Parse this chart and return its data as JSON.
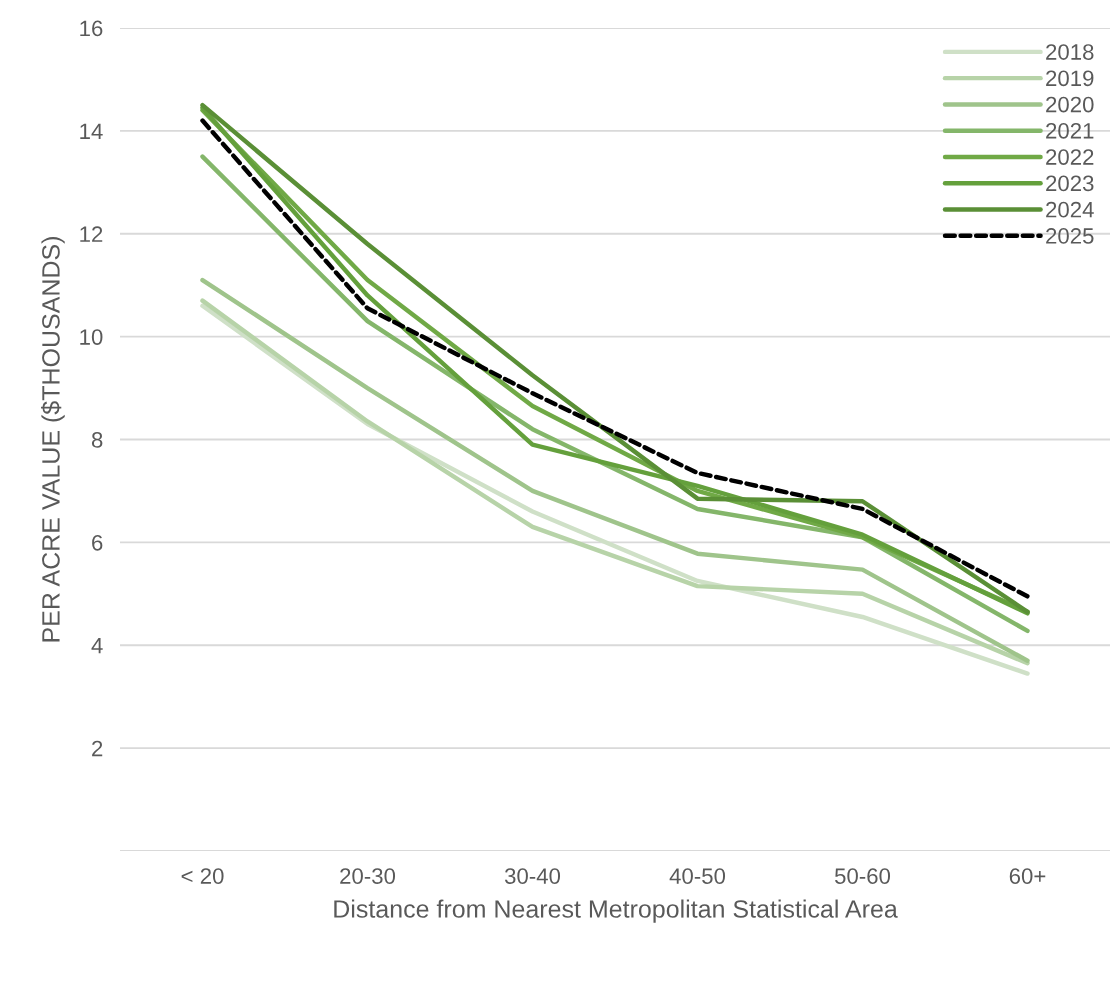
{
  "chart_data": {
    "type": "line",
    "xlabel": "Distance from Nearest Metropolitan Statistical Area",
    "ylabel": "PER ACRE VALUE ($THOUSANDS)",
    "categories": [
      "< 20",
      "20-30",
      "30-40",
      "40-50",
      "50-60",
      "60+"
    ],
    "series": [
      {
        "name": "2018",
        "color": "#cfe0c7",
        "values": [
          10.6,
          8.3,
          6.6,
          5.25,
          4.55,
          3.45
        ]
      },
      {
        "name": "2019",
        "color": "#b7d3a8",
        "values": [
          10.7,
          8.35,
          6.3,
          5.15,
          5.0,
          3.65
        ]
      },
      {
        "name": "2020",
        "color": "#9fc48b",
        "values": [
          11.1,
          9.0,
          7.0,
          5.78,
          5.47,
          3.7
        ]
      },
      {
        "name": "2021",
        "color": "#84b66a",
        "values": [
          13.5,
          10.3,
          8.2,
          6.65,
          6.1,
          4.28
        ]
      },
      {
        "name": "2022",
        "color": "#70a946",
        "values": [
          14.4,
          11.1,
          8.65,
          7.0,
          6.1,
          4.65
        ]
      },
      {
        "name": "2023",
        "color": "#64a03c",
        "values": [
          14.45,
          10.8,
          7.9,
          7.1,
          6.15,
          4.62
        ]
      },
      {
        "name": "2024",
        "color": "#5a8f36",
        "values": [
          14.5,
          11.8,
          9.25,
          6.85,
          6.8,
          4.65
        ]
      },
      {
        "name": "2025",
        "color": "#000000",
        "line_style": "dashed",
        "values": [
          14.2,
          10.55,
          8.9,
          7.35,
          6.65,
          4.95
        ]
      }
    ],
    "ylim": [
      0,
      16
    ],
    "yticks": [
      {
        "value": 0,
        "label": null
      },
      2,
      4,
      6,
      8,
      10,
      12,
      14,
      16
    ],
    "grid": "y",
    "legend": "top right",
    "line_style": "solid",
    "marker": "none"
  }
}
